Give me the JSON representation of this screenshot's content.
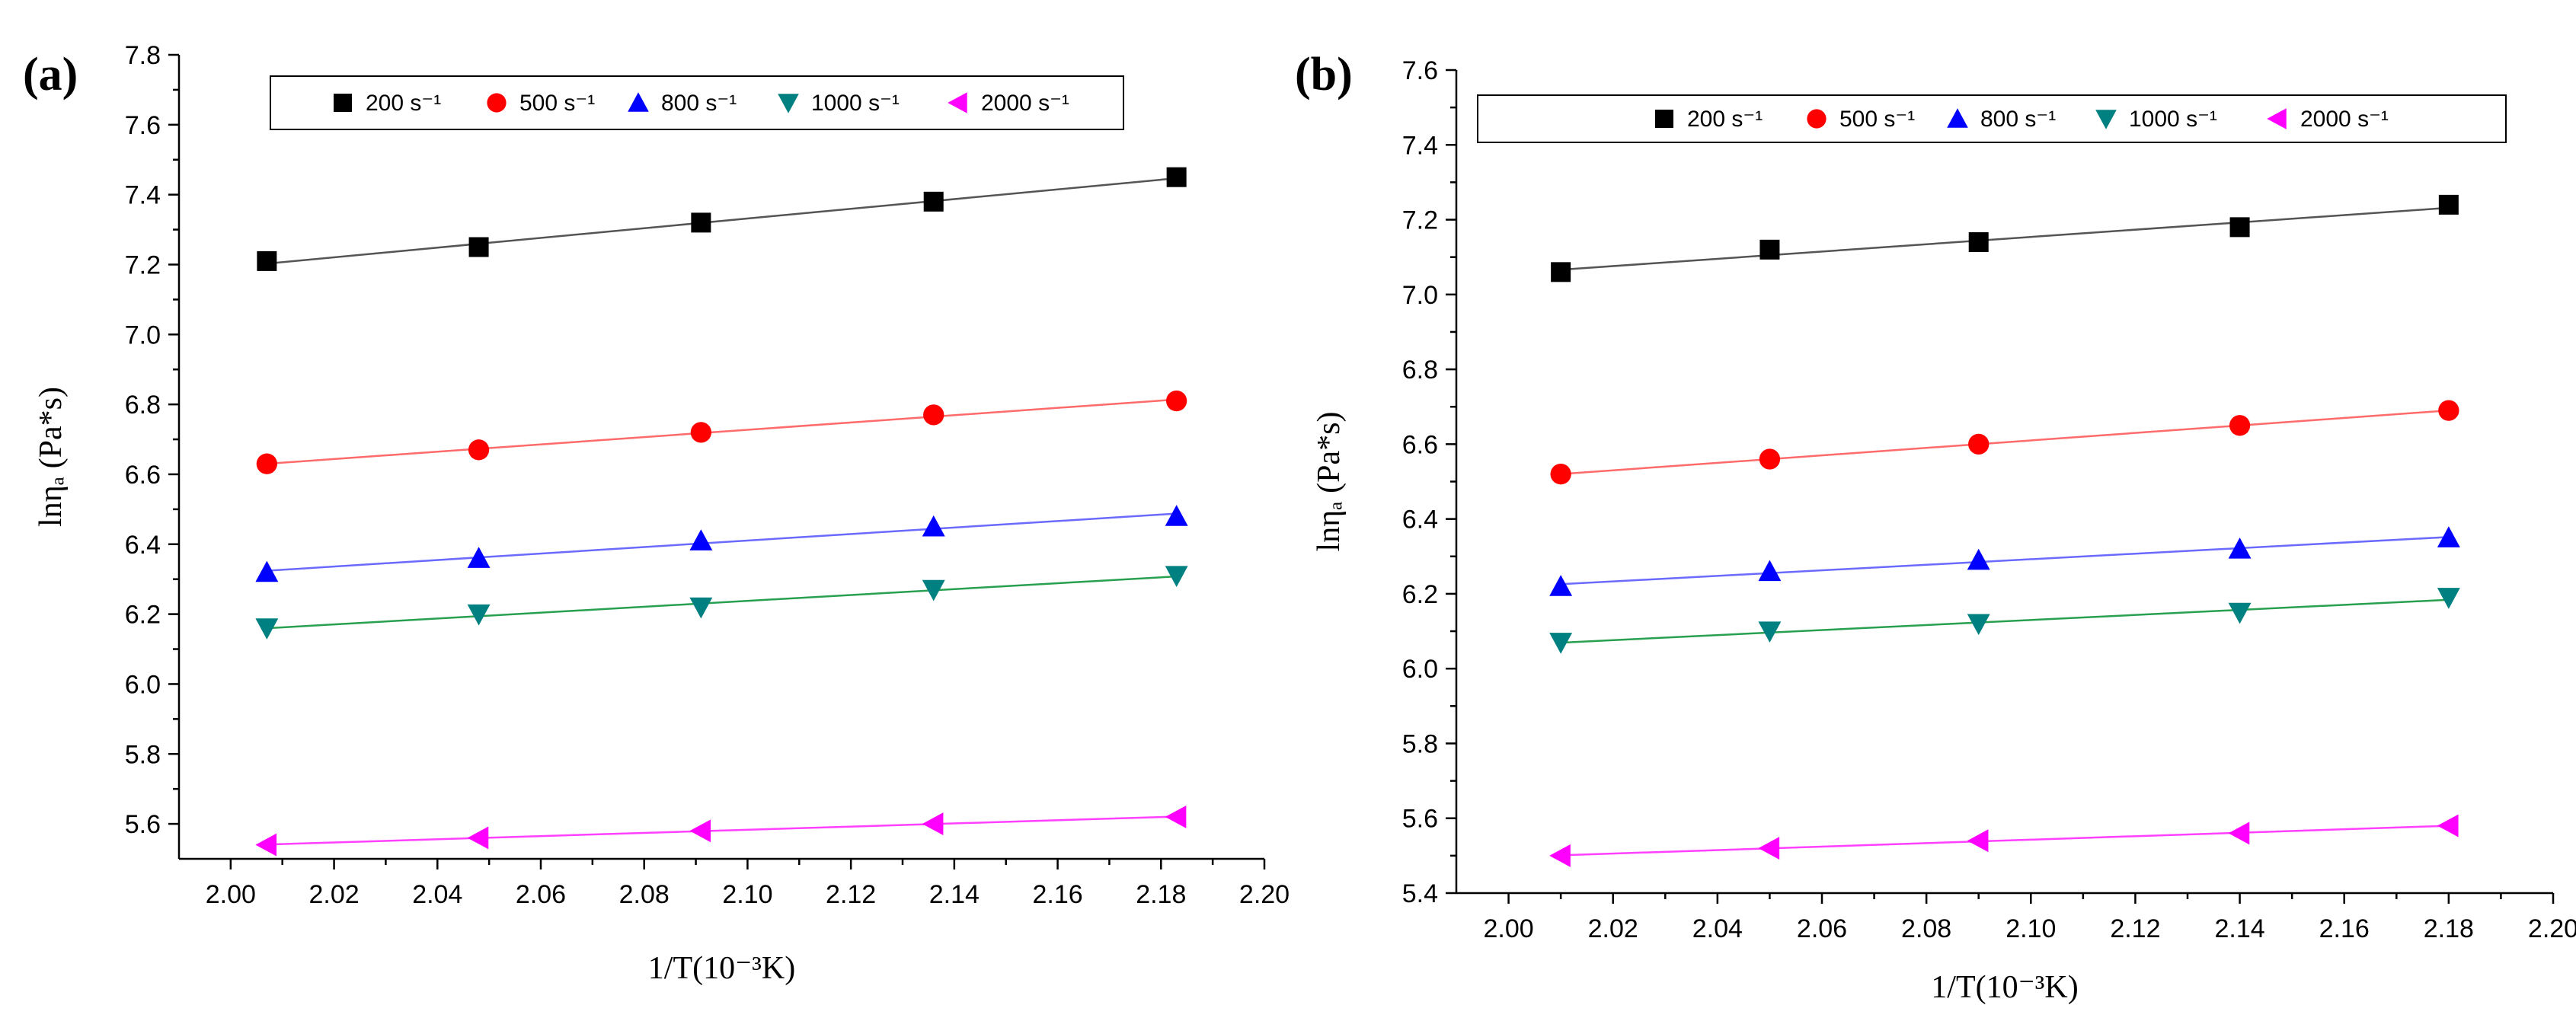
{
  "chart_data": [
    {
      "panel": "(a)",
      "type": "scatter",
      "xlabel": "1/T(10⁻³K)",
      "ylabel": "lnηₐ (Pa*s)",
      "xlim": [
        1.99,
        2.2
      ],
      "ylim": [
        5.5,
        7.8
      ],
      "xticks": [
        2.0,
        2.02,
        2.04,
        2.06,
        2.08,
        2.1,
        2.12,
        2.14,
        2.16,
        2.18,
        2.2
      ],
      "yticks": [
        5.6,
        5.8,
        6.0,
        6.2,
        6.4,
        6.6,
        6.8,
        7.0,
        7.2,
        7.4,
        7.6,
        7.8
      ],
      "xtick_labels": [
        "2.00",
        "2.02",
        "2.04",
        "2.06",
        "2.08",
        "2.10",
        "2.12",
        "2.14",
        "2.16",
        "2.18",
        "2.20"
      ],
      "ytick_labels": [
        "5.6",
        "5.8",
        "6.0",
        "6.2",
        "6.4",
        "6.6",
        "6.8",
        "7.0",
        "7.2",
        "7.4",
        "7.6",
        "7.8"
      ],
      "legend_position": "top",
      "x": [
        2.007,
        2.048,
        2.091,
        2.136,
        2.183
      ],
      "series": [
        {
          "name": "200 s⁻¹",
          "marker": "square",
          "color": "#000000",
          "line_color": "#555555",
          "values": [
            7.21,
            7.25,
            7.32,
            7.38,
            7.45
          ]
        },
        {
          "name": "500 s⁻¹",
          "marker": "circle",
          "color": "#ff0000",
          "line_color": "#ff6a6a",
          "values": [
            6.63,
            6.67,
            6.72,
            6.77,
            6.81
          ]
        },
        {
          "name": "800 s⁻¹",
          "marker": "triangle-up",
          "color": "#0000ff",
          "line_color": "#6a6aff",
          "values": [
            6.32,
            6.36,
            6.41,
            6.45,
            6.48
          ]
        },
        {
          "name": "1000 s⁻¹",
          "marker": "triangle-down",
          "color": "#008080",
          "line_color": "#28a050",
          "values": [
            6.16,
            6.2,
            6.22,
            6.27,
            6.31
          ]
        },
        {
          "name": "2000 s⁻¹",
          "marker": "triangle-left",
          "color": "#ff00ff",
          "line_color": "#ff40ff",
          "values": [
            5.54,
            5.56,
            5.58,
            5.6,
            5.62
          ]
        }
      ]
    },
    {
      "panel": "(b)",
      "type": "scatter",
      "xlabel": "1/T(10⁻³K)",
      "ylabel": "lnηₐ (Pa*s)",
      "xlim": [
        1.99,
        2.2
      ],
      "ylim": [
        5.4,
        7.6
      ],
      "xticks": [
        2.0,
        2.02,
        2.04,
        2.06,
        2.08,
        2.1,
        2.12,
        2.14,
        2.16,
        2.18,
        2.2
      ],
      "yticks": [
        5.4,
        5.6,
        5.8,
        6.0,
        6.2,
        6.4,
        6.6,
        6.8,
        7.0,
        7.2,
        7.4,
        7.6
      ],
      "xtick_labels": [
        "2.00",
        "2.02",
        "2.04",
        "2.06",
        "2.08",
        "2.10",
        "2.12",
        "2.14",
        "2.16",
        "2.18",
        "2.20"
      ],
      "ytick_labels": [
        "5.4",
        "5.6",
        "5.8",
        "6.0",
        "6.2",
        "6.4",
        "6.6",
        "6.8",
        "7.0",
        "7.2",
        "7.4",
        "7.6"
      ],
      "legend_position": "top",
      "x": [
        2.01,
        2.05,
        2.09,
        2.14,
        2.18
      ],
      "series": [
        {
          "name": "200  s⁻¹",
          "marker": "square",
          "color": "#000000",
          "line_color": "#555555",
          "values": [
            7.06,
            7.12,
            7.14,
            7.18,
            7.24
          ]
        },
        {
          "name": "500 s⁻¹",
          "marker": "circle",
          "color": "#ff0000",
          "line_color": "#ff6a6a",
          "values": [
            6.52,
            6.56,
            6.6,
            6.65,
            6.69
          ]
        },
        {
          "name": "800 s⁻¹",
          "marker": "triangle-up",
          "color": "#0000ff",
          "line_color": "#6a6aff",
          "values": [
            6.22,
            6.26,
            6.29,
            6.32,
            6.35
          ]
        },
        {
          "name": "1000 s⁻¹",
          "marker": "triangle-down",
          "color": "#008080",
          "line_color": "#28a050",
          "values": [
            6.07,
            6.1,
            6.12,
            6.15,
            6.19
          ]
        },
        {
          "name": "2000 s⁻¹",
          "marker": "triangle-left",
          "color": "#ff00ff",
          "line_color": "#ff40ff",
          "values": [
            5.5,
            5.52,
            5.54,
            5.56,
            5.58
          ]
        }
      ]
    }
  ]
}
